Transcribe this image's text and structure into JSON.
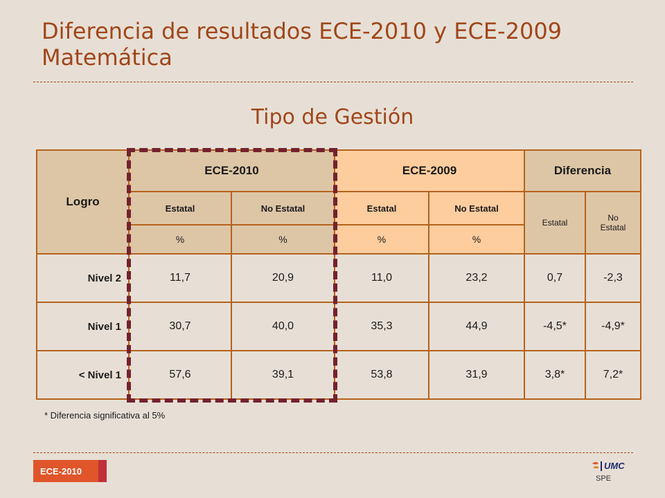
{
  "slide": {
    "title_line1": "Diferencia de resultados ECE-2010 y ECE-2009",
    "title_line2": "Matemática",
    "subtitle": "Tipo de Gestión",
    "footnote": "* Diferencia significativa al 5%",
    "badge": "ECE-2010",
    "logo_text": "UMC",
    "logo_sub": "SPE",
    "colors": {
      "title": "#a0461a",
      "background": "#e7dfd5",
      "header_tan": "#ddc6a6",
      "header_peach": "#fecd9e",
      "border": "#b5621c",
      "highlight_dash": "#74222e",
      "badge": "#e0552a"
    }
  },
  "table": {
    "logro_header": "Logro",
    "groups": [
      "ECE-2010",
      "ECE-2009",
      "Diferencia"
    ],
    "sub": {
      "estatal": "Estatal",
      "no_estatal": "No Estatal",
      "diff_estatal": "Estatal",
      "diff_no_estatal": "No Estatal",
      "pct": "%"
    },
    "rows": [
      {
        "label": "Nivel 2",
        "values": [
          "11,7",
          "20,9",
          "11,0",
          "23,2",
          "0,7",
          "-2,3"
        ]
      },
      {
        "label": "Nivel 1",
        "values": [
          "30,7",
          "40,0",
          "35,3",
          "44,9",
          "-4,5*",
          "-4,9*"
        ]
      },
      {
        "label": "< Nivel 1",
        "values": [
          "57,6",
          "39,1",
          "53,8",
          "31,9",
          "3,8*",
          "7,2*"
        ]
      }
    ]
  }
}
